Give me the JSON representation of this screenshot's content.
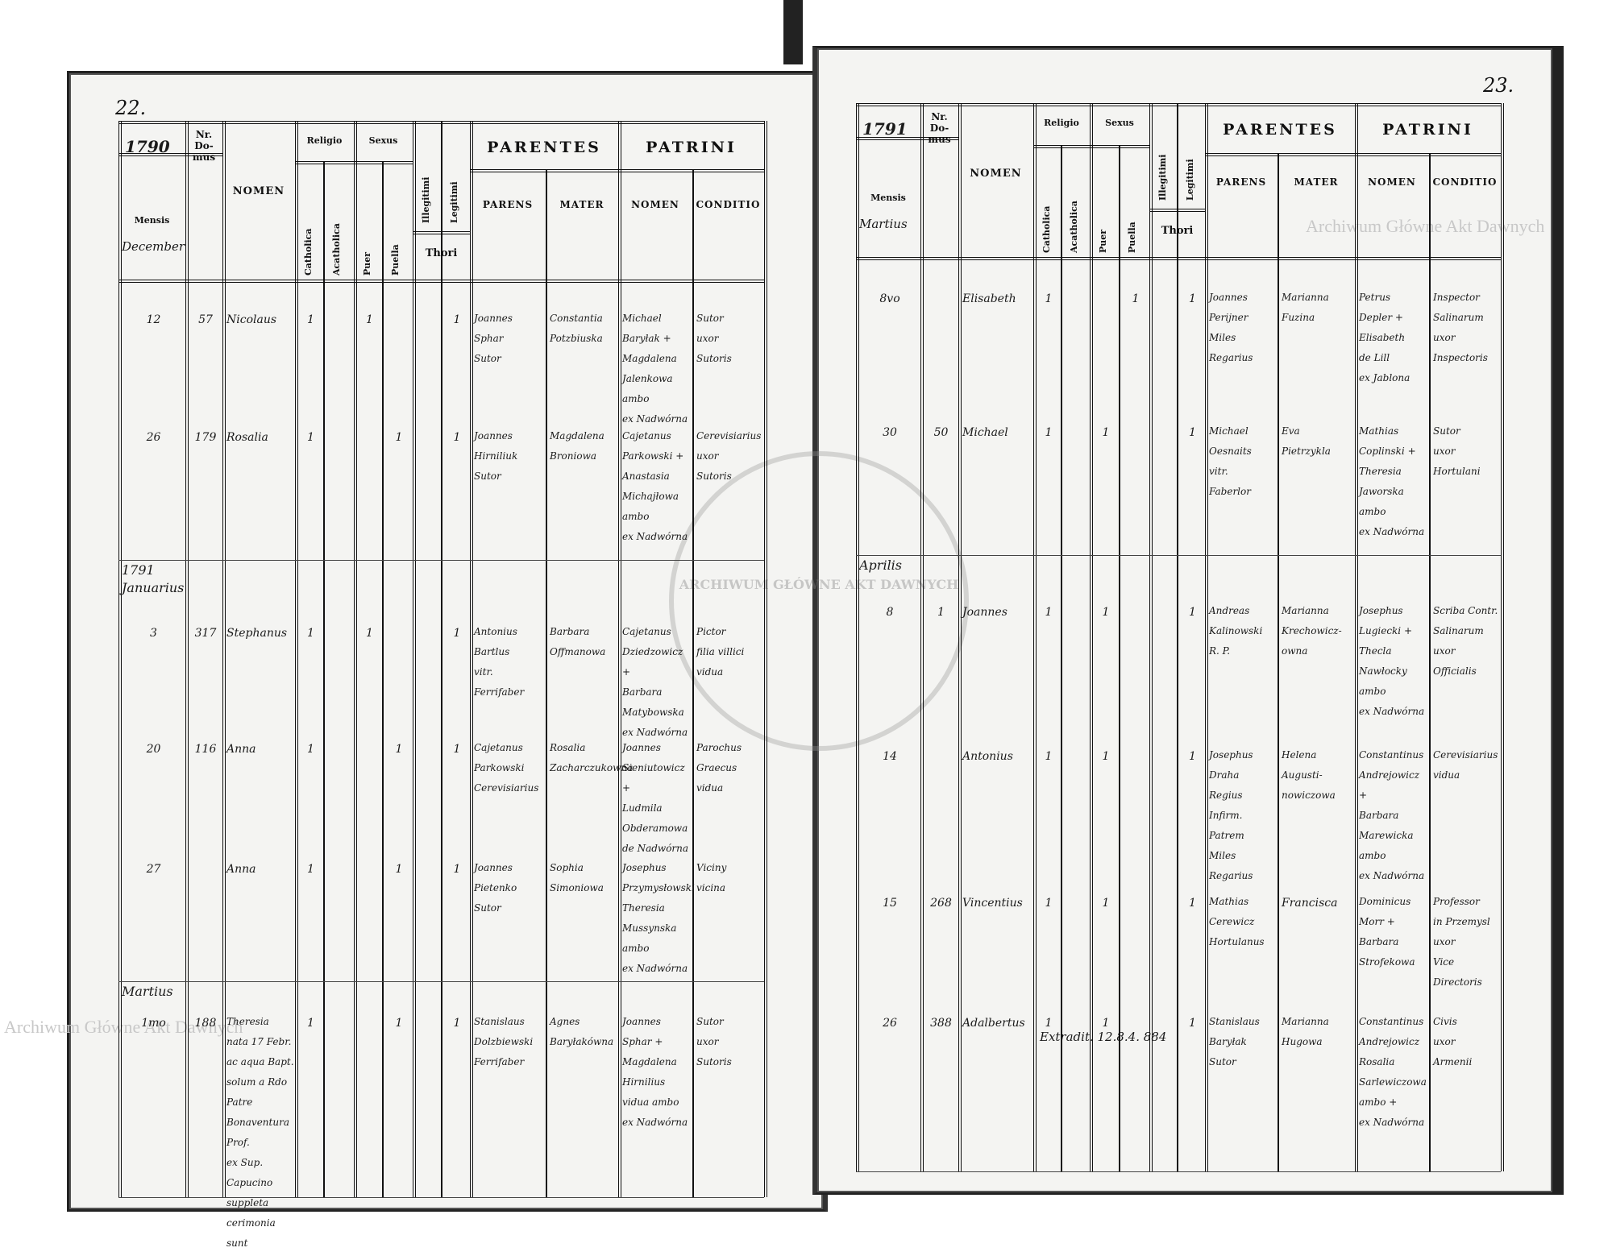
{
  "watermark": "Archiwum Główne Akt Dawnych",
  "seal_text": "ARCHIWUM GŁÓWNE AKT DAWNYCH",
  "header": {
    "nr_domus": "Nr. Do- mus",
    "nomen": "NOMEN",
    "religio": "Religio",
    "sexus": "Sexus",
    "catholica": "Catholica",
    "acatholica": "Acatholica",
    "puer": "Puer",
    "puella": "Puella",
    "illegitimi": "Illegitimi",
    "legitimi": "Legitimi",
    "thori": "Thori",
    "parentes": "PARENTES",
    "parens": "PARENS",
    "mater": "MATER",
    "patrini": "PATRINI",
    "patrini_nomen": "NOMEN",
    "conditio": "CONDITIO",
    "mensis": "Mensis"
  },
  "left": {
    "page_number": "22.",
    "year": "1790",
    "month": "December",
    "sections": [
      {
        "label": "",
        "entries": [
          {
            "day": "12",
            "domus": "57",
            "nomen": "Nicolaus",
            "cath": "1",
            "acath": "",
            "puer": "1",
            "puella": "",
            "illeg": "",
            "leg": "1",
            "parens": "Joannes\nSphar\nSutor",
            "mater": "Constantia\nPotzbiuska",
            "patrini": "Michael\nBaryłak +\nMagdalena\nJalenkowa\nambo\nex Nadwórna",
            "conditio": "Sutor\nuxor\nSutoris"
          },
          {
            "day": "26",
            "domus": "179",
            "nomen": "Rosalia",
            "cath": "1",
            "acath": "",
            "puer": "",
            "puella": "1",
            "illeg": "",
            "leg": "1",
            "parens": "Joannes\nHirniliuk\nSutor",
            "mater": "Magdalena\nBroniowa",
            "patrini": "Cajetanus\nParkowski +\nAnastasia\nMichajłowa\nambo\nex Nadwórna",
            "conditio": "Cerevisiarius\nuxor\nSutoris"
          }
        ]
      },
      {
        "label": "1791 Januarius",
        "entries": [
          {
            "day": "3",
            "domus": "317",
            "nomen": "Stephanus",
            "cath": "1",
            "acath": "",
            "puer": "1",
            "puella": "",
            "illeg": "",
            "leg": "1",
            "parens": "Antonius\nBartlus\nvitr.\nFerrifaber",
            "mater": "Barbara\nOffmanowa",
            "patrini": "Cajetanus\nDziedzowicz +\nBarbara\nMatybowska\nex Nadwórna",
            "conditio": "Pictor\nfilia villici\nvidua"
          },
          {
            "day": "20",
            "domus": "116",
            "nomen": "Anna",
            "cath": "1",
            "acath": "",
            "puer": "",
            "puella": "1",
            "illeg": "",
            "leg": "1",
            "parens": "Cajetanus\nParkowski\nCerevisiarius",
            "mater": "Rosalia\nZacharczukowna",
            "patrini": "Joannes\nSieniutowicz +\nLudmila\nObderamowa\nde Nadwórna",
            "conditio": "Parochus\nGraecus\nvidua"
          },
          {
            "day": "27",
            "domus": "",
            "nomen": "Anna",
            "cath": "1",
            "acath": "",
            "puer": "",
            "puella": "1",
            "illeg": "",
            "leg": "1",
            "parens": "Joannes\nPietenko\nSutor",
            "mater": "Sophia\nSimoniowa",
            "patrini": "Josephus\nPrzymysłowski\nTheresia\nMussynska\nambo\nex Nadwórna",
            "conditio": "Viciny\nvicina"
          }
        ]
      },
      {
        "label": "Martius",
        "entries": [
          {
            "day": "1mo",
            "domus": "188",
            "nomen": "Theresia\nnata 17 Febr.\nac aqua Bapt.\nsolum a Rdo Patre\nBonaventura Prof.\nex Sup. Capucino\nsuppleta cerimonia\nsunt",
            "cath": "1",
            "acath": "",
            "puer": "",
            "puella": "1",
            "illeg": "",
            "leg": "1",
            "parens": "Stanislaus\nDolzbiewski\nFerrifaber",
            "mater": "Agnes\nBaryłakówna",
            "patrini": "Joannes\nSphar +\nMagdalena\nHirnilius\nvidua ambo\nex Nadwórna",
            "conditio": "Sutor\nuxor\nSutoris"
          }
        ]
      }
    ]
  },
  "right": {
    "page_number": "23.",
    "year": "1791",
    "month": "Martius",
    "sections": [
      {
        "label": "",
        "entries": [
          {
            "day": "8vo",
            "domus": "",
            "nomen": "Elisabeth",
            "cath": "1",
            "acath": "",
            "puer": "",
            "puella": "1",
            "illeg": "",
            "leg": "1",
            "parens": "Joannes\nPerijner\nMiles\nRegarius",
            "mater": "Marianna\nFuzina",
            "patrini": "Petrus\nDepler +\nElisabeth\nde Lill\nex Jablona",
            "conditio": "Inspector\nSalinarum\nuxor\nInspectoris"
          },
          {
            "day": "30",
            "domus": "50",
            "nomen": "Michael",
            "cath": "1",
            "acath": "",
            "puer": "1",
            "puella": "",
            "illeg": "",
            "leg": "1",
            "parens": "Michael\nOesnaits\nvitr.\nFaberlor",
            "mater": "Eva\nPietrzykla",
            "patrini": "Mathias\nCoplinski +\nTheresia\nJaworska\nambo\nex Nadwórna",
            "conditio": "Sutor\nuxor\nHortulani"
          }
        ]
      },
      {
        "label": "Aprilis",
        "entries": [
          {
            "day": "8",
            "domus": "1",
            "nomen": "Joannes",
            "cath": "1",
            "acath": "",
            "puer": "1",
            "puella": "",
            "illeg": "",
            "leg": "1",
            "parens": "Andreas\nKalinowski\nR. P.",
            "mater": "Marianna\nKrechowicz-\nowna",
            "patrini": "Josephus\nLugiecki +\nThecla\nNawłocky\nambo\nex Nadwórna",
            "conditio": "Scriba Contr.\nSalinarum\nuxor\nOfficialis"
          },
          {
            "day": "14",
            "domus": "",
            "nomen": "Antonius",
            "cath": "1",
            "acath": "",
            "puer": "1",
            "puella": "",
            "illeg": "",
            "leg": "1",
            "parens": "Josephus\nDraha\nRegius Infirm.\nPatrem\nMiles\nRegarius",
            "mater": "Helena\nAugusti-\nnowiczowa",
            "patrini": "Constantinus\nAndrejowicz +\nBarbara\nMarewicka\nambo\nex Nadwórna",
            "conditio": "Cerevisiarius\nvidua"
          },
          {
            "day": "15",
            "domus": "268",
            "nomen": "Vincentius",
            "cath": "1",
            "acath": "",
            "puer": "1",
            "puella": "",
            "illeg": "",
            "leg": "1",
            "parens": "Mathias\nCerewicz\nHortulanus",
            "mater": "Francisca",
            "patrini": "Dominicus\nMorr +\nBarbara\nStrofekowa",
            "conditio": "Professor\nin Przemysl\nuxor\nVice Directoris"
          },
          {
            "day": "26",
            "domus": "388",
            "nomen": "Adalbertus",
            "cath": "1",
            "acath": "",
            "puer": "1",
            "puella": "",
            "illeg": "",
            "leg": "1",
            "parens": "Stanislaus\nBaryłak\nSutor",
            "mater": "Marianna\nHugowa",
            "patrini": "Constantinus\nAndrejowicz\nRosalia\nSarlewiczowa\nambo +\nex Nadwórna",
            "conditio": "Civis\nuxor\nArmenii"
          }
        ]
      }
    ],
    "note": "Extradit. 12.8.4. 884"
  }
}
